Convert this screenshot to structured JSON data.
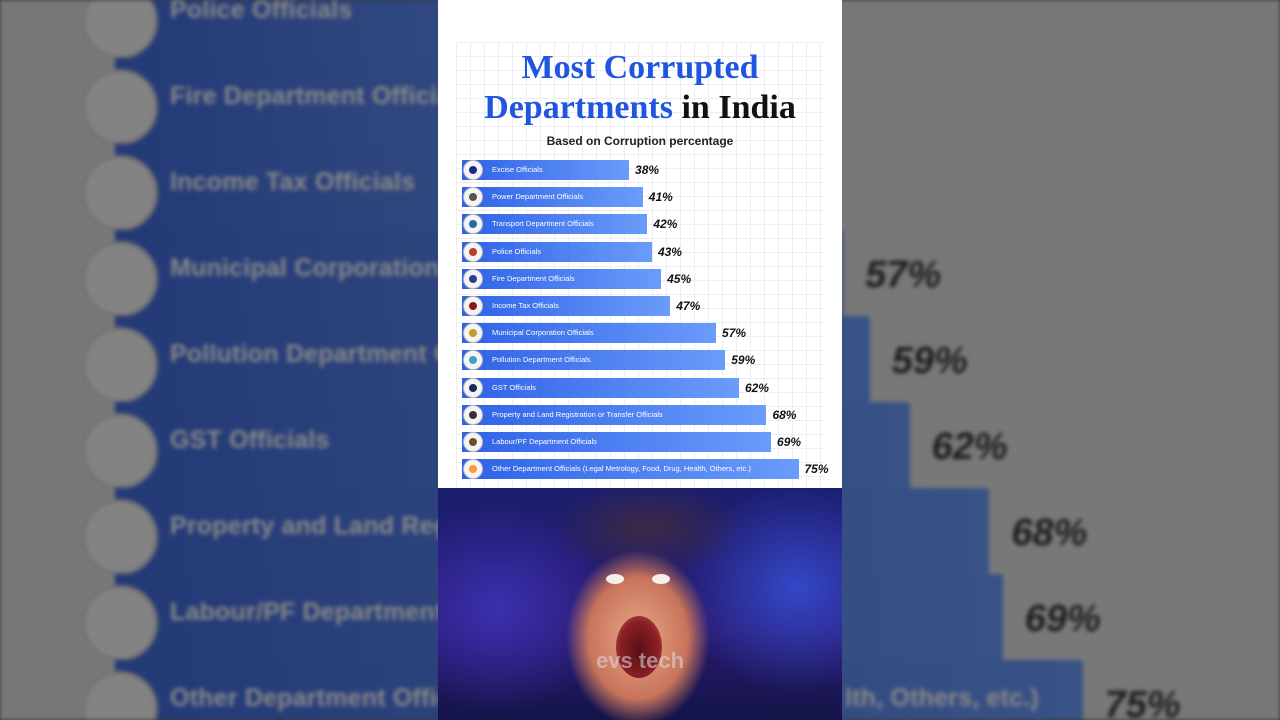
{
  "chart_data": {
    "type": "bar",
    "orientation": "horizontal",
    "title": "Most Corrupted Departments in India",
    "title_parts": {
      "highlight": "Most Corrupted Departments",
      "rest": "in India"
    },
    "subtitle": "Based on Corruption percentage",
    "unit": "%",
    "categories": [
      "Excise Officials",
      "Power Department Officials",
      "Transport Department Officials",
      "Police Officials",
      "Fire Department Officials",
      "Income Tax Officials",
      "Municipal Corporation Officials",
      "Pollution Department Officials",
      "GST Officials",
      "Property and Land Registration or Transfer Officials",
      "Labour/PF Department Officials",
      "Other Department Officials (Legal Metrology, Food, Drug, Health, Others, etc.)"
    ],
    "values": [
      38,
      41,
      42,
      43,
      45,
      47,
      57,
      59,
      62,
      68,
      69,
      75
    ],
    "value_labels": [
      "38%",
      "41%",
      "42%",
      "43%",
      "45%",
      "47%",
      "57%",
      "59%",
      "62%",
      "68%",
      "69%",
      "75%"
    ],
    "xlim": [
      0,
      80
    ],
    "grid": true,
    "colors": {
      "bar_start": "#2f62e6",
      "bar_end": "#6a9cfb",
      "title_blue": "#1f55e0"
    },
    "icons": [
      "excise-emblem-icon",
      "power-dept-icon",
      "transport-emblem-icon",
      "police-emblem-icon",
      "fire-dept-emblem-icon",
      "income-tax-emblem-icon",
      "municipal-emblem-icon",
      "pollution-board-icon",
      "gst-emblem-icon",
      "ashoka-lion-icon",
      "labour-emblem-icon",
      "india-flag-icon"
    ]
  },
  "background_blur": {
    "labels": [
      "Police Officials",
      "Fire Department Officials",
      "Income Tax Officials",
      "Municipal Corporation Of",
      "Pollution Department Of",
      "GST Officials",
      "Property and Land Regist",
      "Labour/PF Department O",
      "Other Department Officia"
    ],
    "tail_text": "lth, Others, etc.)",
    "percents": [
      "57%",
      "59%",
      "62%",
      "68%",
      "69%",
      "75%"
    ]
  },
  "photo": {
    "watermark": "evs tech"
  }
}
